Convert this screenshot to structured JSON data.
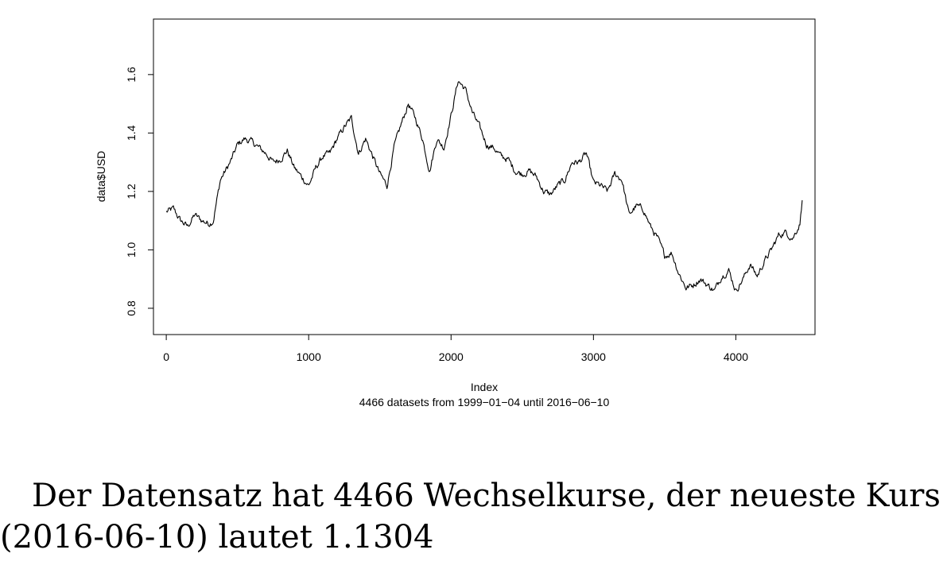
{
  "chart_data": {
    "type": "line",
    "xlabel": "Index",
    "ylabel": "data$USD",
    "subtitle": "4466  datasets from  1999−01−04  until  2016−06−10",
    "xlim": [
      -90,
      4556
    ],
    "ylim": [
      0.71,
      1.79
    ],
    "x_ticks": [
      0,
      1000,
      2000,
      3000,
      4000
    ],
    "x_tick_labels": [
      "0",
      "1000",
      "2000",
      "3000",
      "4000"
    ],
    "y_ticks": [
      0.8,
      1.0,
      1.2,
      1.4,
      1.6
    ],
    "y_tick_labels": [
      "0.8",
      "1.0",
      "1.2",
      "1.4",
      "1.6"
    ],
    "grid": false,
    "series": [
      {
        "x": [
          1,
          50,
          100,
          150,
          200,
          250,
          300,
          330,
          380,
          450,
          500,
          550,
          600,
          650,
          700,
          750,
          800,
          850,
          900,
          950,
          1000,
          1050,
          1100,
          1150,
          1200,
          1250,
          1300,
          1350,
          1400,
          1450,
          1500,
          1550,
          1600,
          1650,
          1700,
          1750,
          1800,
          1850,
          1900,
          1950,
          2000,
          2050,
          2100,
          2150,
          2200,
          2250,
          2300,
          2350,
          2400,
          2450,
          2500,
          2550,
          2600,
          2650,
          2700,
          2750,
          2800,
          2850,
          2900,
          2950,
          3000,
          3050,
          3100,
          3150,
          3200,
          3250,
          3300,
          3350,
          3400,
          3450,
          3500,
          3550,
          3600,
          3650,
          3700,
          3750,
          3800,
          3850,
          3900,
          3950,
          4000,
          4050,
          4100,
          4150,
          4200,
          4250,
          4300,
          4350,
          4400,
          4450,
          4466
        ],
        "values": [
          1.13,
          1.14,
          1.1,
          1.08,
          1.12,
          1.1,
          1.09,
          1.1,
          1.24,
          1.3,
          1.36,
          1.38,
          1.37,
          1.35,
          1.33,
          1.3,
          1.31,
          1.34,
          1.28,
          1.25,
          1.22,
          1.28,
          1.32,
          1.33,
          1.38,
          1.42,
          1.45,
          1.33,
          1.38,
          1.32,
          1.26,
          1.22,
          1.35,
          1.43,
          1.5,
          1.45,
          1.38,
          1.27,
          1.38,
          1.35,
          1.46,
          1.58,
          1.55,
          1.47,
          1.42,
          1.36,
          1.35,
          1.32,
          1.31,
          1.27,
          1.26,
          1.27,
          1.25,
          1.2,
          1.19,
          1.22,
          1.24,
          1.3,
          1.3,
          1.33,
          1.23,
          1.22,
          1.2,
          1.26,
          1.24,
          1.12,
          1.15,
          1.14,
          1.08,
          1.04,
          0.98,
          0.99,
          0.92,
          0.87,
          0.88,
          0.9,
          0.88,
          0.86,
          0.91,
          0.93,
          0.86,
          0.9,
          0.95,
          0.91,
          0.96,
          1.0,
          1.05,
          1.06,
          1.04,
          1.09,
          1.17
        ]
      }
    ]
  },
  "text": {
    "line1_words": [
      "Der",
      "Datensatz",
      "hat",
      "4466",
      "Wechselkurse,",
      "der",
      "neueste",
      "Kurs"
    ],
    "line2": "(2016-06-10) lautet 1.1304"
  }
}
